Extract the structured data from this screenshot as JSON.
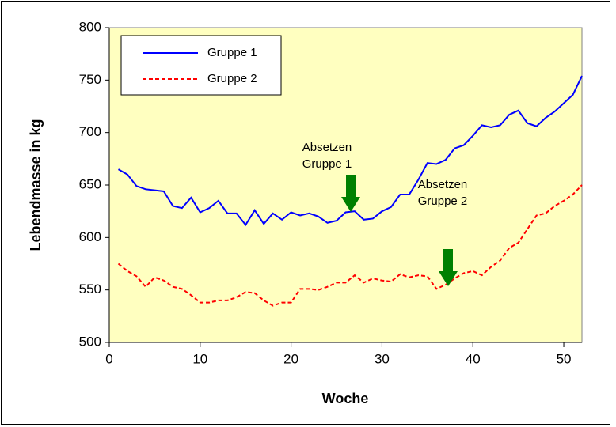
{
  "chart_data": {
    "type": "line",
    "xlabel": "Woche",
    "ylabel": "Lebendmasse in kg",
    "x": [
      1,
      2,
      3,
      4,
      5,
      6,
      7,
      8,
      9,
      10,
      11,
      12,
      13,
      14,
      15,
      16,
      17,
      18,
      19,
      20,
      21,
      22,
      23,
      24,
      25,
      26,
      27,
      28,
      29,
      30,
      31,
      32,
      33,
      34,
      35,
      36,
      37,
      38,
      39,
      40,
      41,
      42,
      43,
      44,
      45,
      46,
      47,
      48,
      49,
      50,
      51,
      52
    ],
    "series": [
      {
        "name": "Gruppe 1",
        "color": "#0000ff",
        "dash": false,
        "values": [
          665,
          660,
          649,
          646,
          645,
          644,
          630,
          628,
          638,
          624,
          628,
          635,
          623,
          623,
          612,
          626,
          613,
          623,
          617,
          624,
          621,
          623,
          620,
          614,
          616,
          624,
          625,
          617,
          618,
          625,
          629,
          641,
          641,
          655,
          671,
          670,
          674,
          685,
          688,
          697,
          707,
          705,
          707,
          717,
          721,
          709,
          706,
          714,
          720,
          728,
          736,
          754
        ]
      },
      {
        "name": "Gruppe 2",
        "color": "#ff0000",
        "dash": true,
        "values": [
          575,
          568,
          563,
          553,
          562,
          559,
          553,
          551,
          545,
          538,
          538,
          540,
          540,
          543,
          548,
          547,
          540,
          535,
          538,
          538,
          551,
          551,
          550,
          553,
          557,
          557,
          564,
          557,
          561,
          559,
          558,
          565,
          562,
          564,
          563,
          551,
          555,
          561,
          566,
          568,
          564,
          572,
          578,
          590,
          595,
          608,
          621,
          623,
          630,
          635,
          641,
          650
        ]
      }
    ],
    "annotations": [
      [
        "Absetzen",
        "Gruppe 1"
      ],
      [
        "Absetzen",
        "Gruppe 2"
      ]
    ],
    "xlim": [
      0,
      52
    ],
    "xticks": [
      0,
      10,
      20,
      30,
      40,
      50
    ],
    "ylim": [
      500,
      800
    ],
    "yticks": [
      500,
      550,
      600,
      650,
      700,
      750,
      800
    ],
    "background": "#ffffc0"
  }
}
